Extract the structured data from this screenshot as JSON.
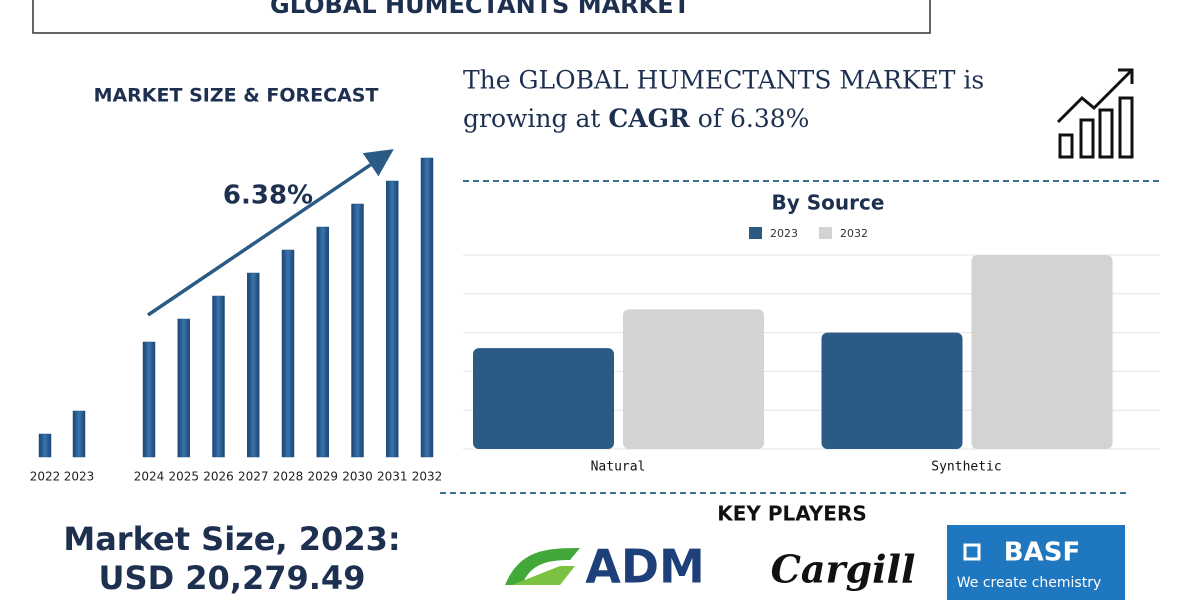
{
  "title": "GLOBAL HUMECTANTS MARKET",
  "headline": [
    "The GLOBAL HUMECTANTS MARKET is",
    "growing at",
    "CAGR",
    "of 6.38%"
  ],
  "chart_data": [
    {
      "type": "bar",
      "title": "MARKET SIZE & FORECAST",
      "annotation": "6.38%",
      "categories": [
        "2022",
        "2023",
        "2024",
        "2025",
        "2026",
        "2027",
        "2028",
        "2029",
        "2030",
        "2031",
        "2032"
      ],
      "values": [
        23,
        46,
        115,
        138,
        161,
        184,
        207,
        230,
        253,
        276,
        299
      ],
      "color": "#24578a"
    },
    {
      "type": "bar",
      "title": "By Source",
      "categories": [
        "Natural",
        "Synthetic"
      ],
      "series": [
        {
          "name": "2023",
          "color": "#2b5a85",
          "values": [
            2.6,
            3.0
          ]
        },
        {
          "name": "2032",
          "color": "#d3d3d3",
          "values": [
            3.6,
            5.0
          ]
        }
      ],
      "ylim": [
        0,
        5
      ],
      "yticks": [
        0,
        1,
        2,
        3,
        4,
        5
      ],
      "grid": true
    }
  ],
  "market_size": {
    "label": "Market Size, 2023:",
    "value": "USD 20,279.49"
  },
  "key_players": {
    "title": "KEY PLAYERS",
    "logos": [
      "ADM",
      "Cargill",
      "BASF"
    ],
    "basf_tagline": "We create chemistry"
  }
}
